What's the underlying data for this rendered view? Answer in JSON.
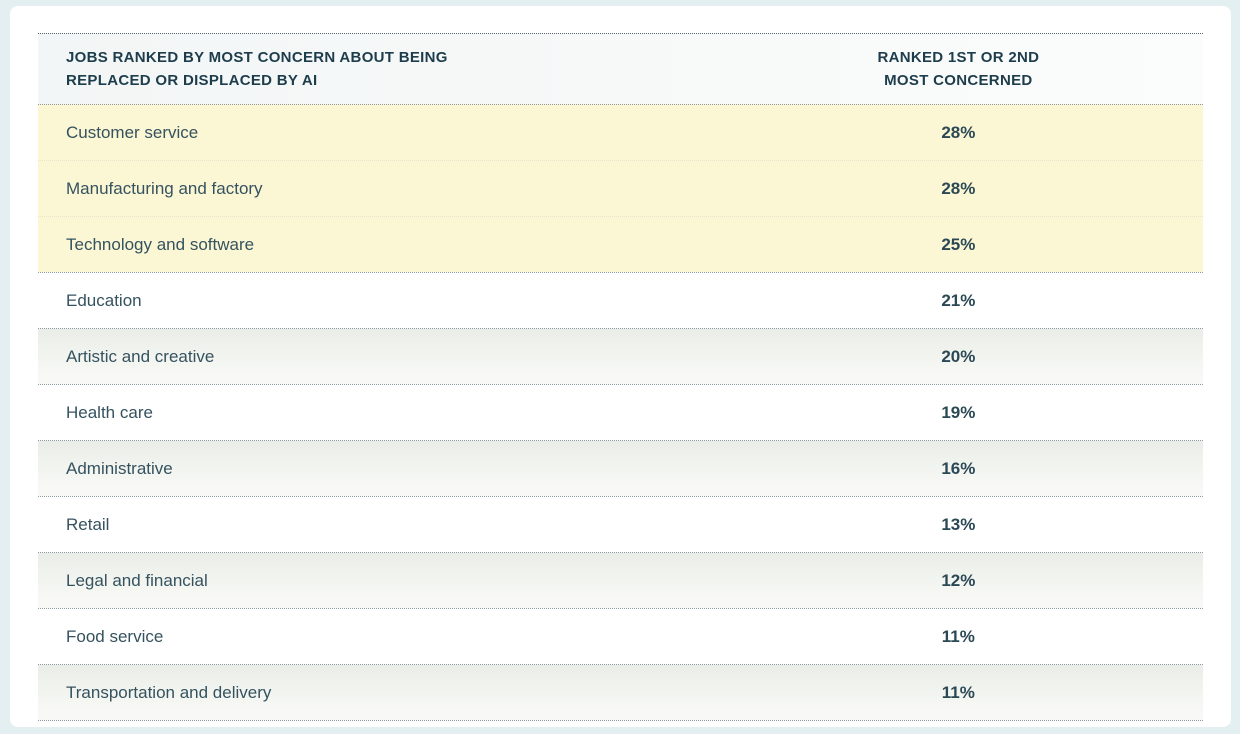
{
  "table": {
    "columns": [
      {
        "header_lines": [
          "JOBS RANKED BY MOST CONCERN ABOUT BEING",
          "REPLACED OR DISPLACED BY AI"
        ]
      },
      {
        "header_lines": [
          "RANKED 1ST OR 2ND",
          "MOST CONCERNED"
        ]
      }
    ],
    "rows": [
      {
        "label": "Customer service",
        "value": "28%",
        "highlighted": true
      },
      {
        "label": "Manufacturing and factory",
        "value": "28%",
        "highlighted": true
      },
      {
        "label": "Technology and software",
        "value": "25%",
        "highlighted": true
      },
      {
        "label": "Education",
        "value": "21%",
        "highlighted": false
      },
      {
        "label": "Artistic and creative",
        "value": "20%",
        "highlighted": false
      },
      {
        "label": "Health care",
        "value": "19%",
        "highlighted": false
      },
      {
        "label": "Administrative",
        "value": "16%",
        "highlighted": false
      },
      {
        "label": "Retail",
        "value": "13%",
        "highlighted": false
      },
      {
        "label": "Legal and financial",
        "value": "12%",
        "highlighted": false
      },
      {
        "label": "Food service",
        "value": "11%",
        "highlighted": false
      },
      {
        "label": "Transportation and delivery",
        "value": "11%",
        "highlighted": false
      }
    ]
  },
  "chart_data": {
    "type": "table",
    "title": "Jobs ranked by most concern about being replaced or displaced by AI",
    "columns": [
      "Jobs ranked by most concern about being replaced or displaced by AI",
      "Ranked 1st or 2nd most concerned"
    ],
    "categories": [
      "Customer service",
      "Manufacturing and factory",
      "Technology and software",
      "Education",
      "Artistic and creative",
      "Health care",
      "Administrative",
      "Retail",
      "Legal and financial",
      "Food service",
      "Transportation and delivery"
    ],
    "values": [
      28,
      28,
      25,
      21,
      20,
      19,
      16,
      13,
      12,
      11,
      11
    ],
    "value_format": "percent",
    "highlighted_categories": [
      "Customer service",
      "Manufacturing and factory",
      "Technology and software"
    ],
    "legend_position": "none",
    "grid": "dotted-row-separators"
  },
  "colors": {
    "page_background": "#e4eff1",
    "card_background": "#ffffff",
    "highlight_yellow": "#fbf7d5",
    "alt_row_gray": "#eaede7",
    "header_text": "#1e3d4c",
    "body_text": "#35525f",
    "separator_gray": "#8b989e"
  }
}
